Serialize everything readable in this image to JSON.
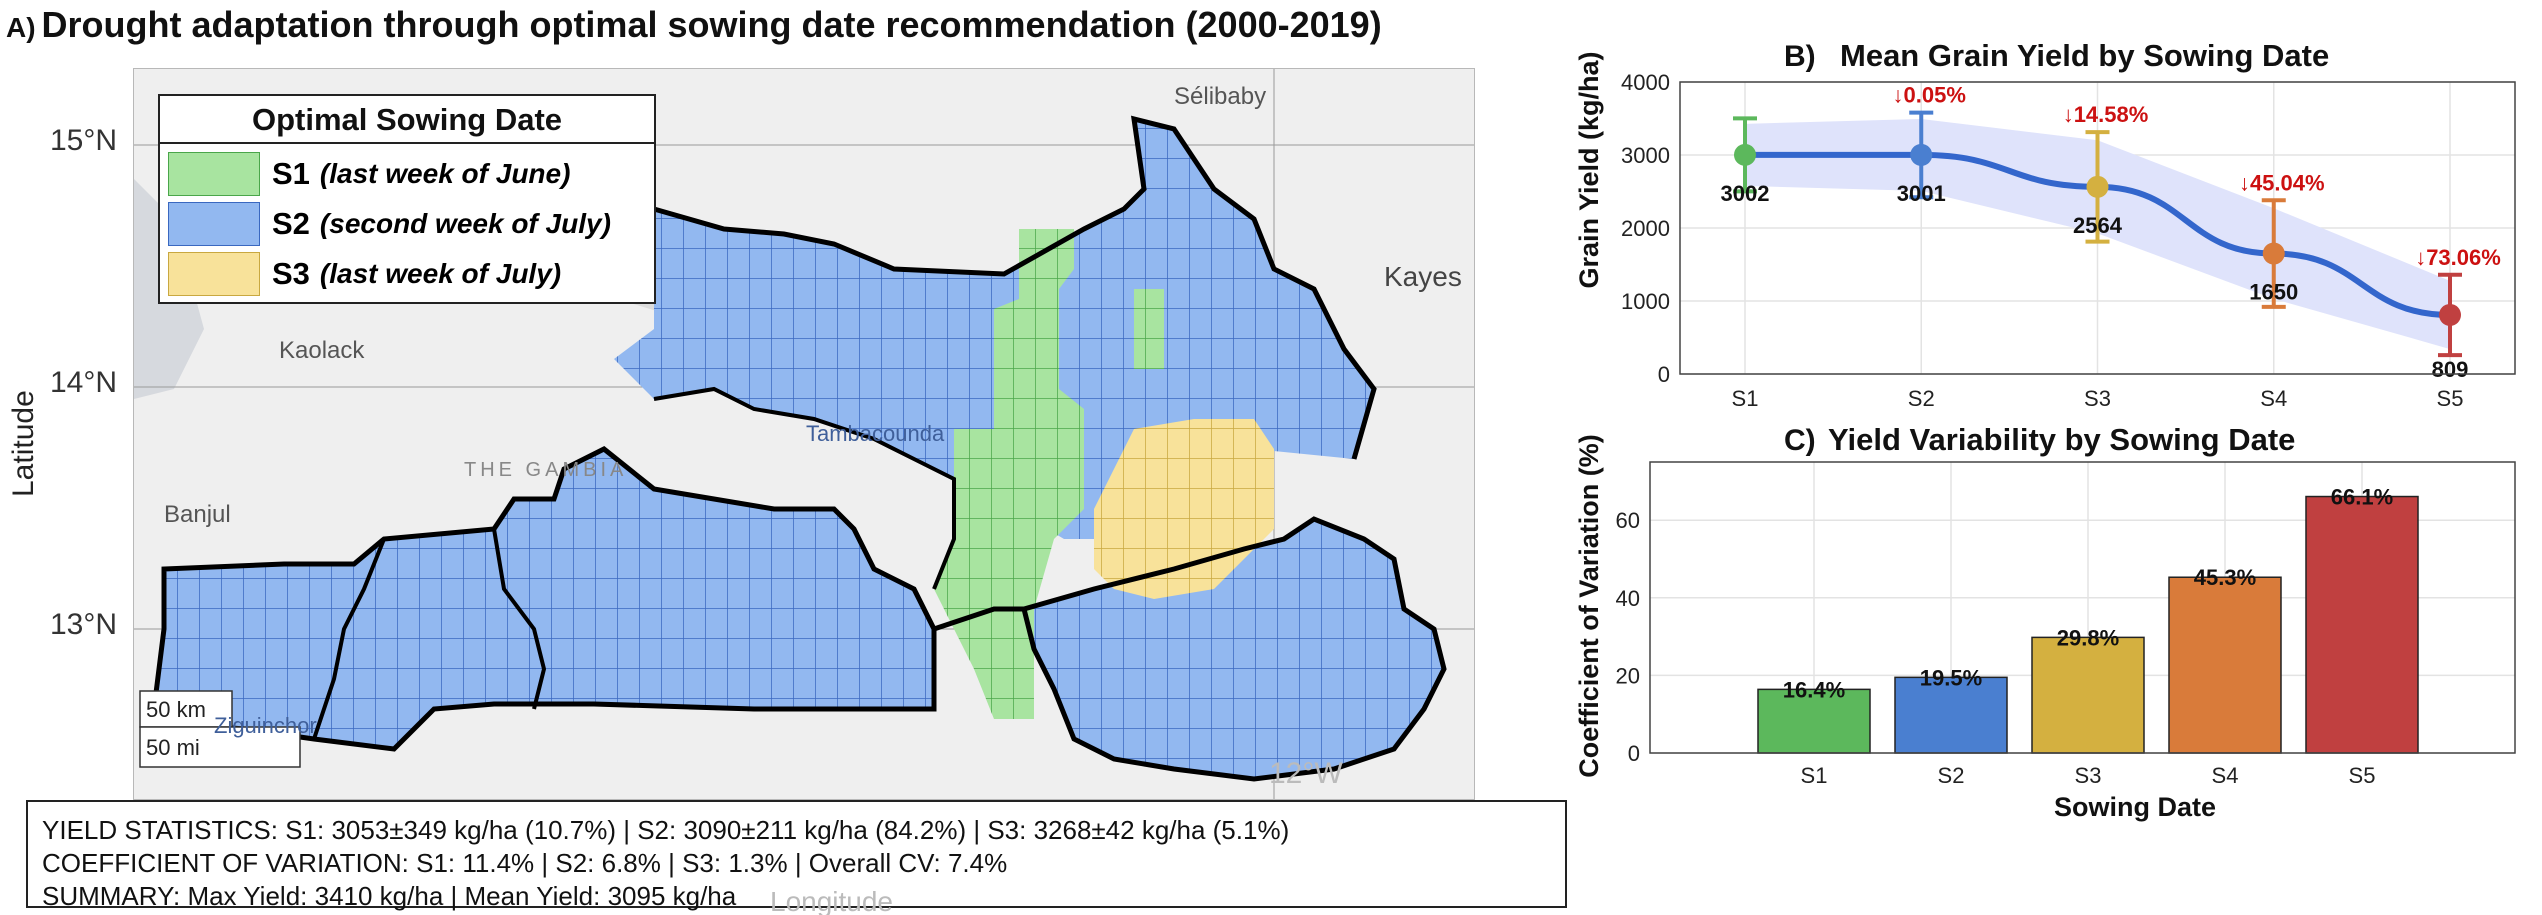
{
  "panel_a": {
    "label": "A)",
    "title": "Drought adaptation through optimal sowing date recommendation (2000-2019)",
    "ylabel": "Latitude",
    "xlabel_partial": "Longitude",
    "lat_ticks": [
      "15°N",
      "14°N",
      "13°N"
    ],
    "lon_ticks": [
      "12°W"
    ],
    "places": [
      "Sélibaby",
      "Kayes",
      "Kaolack",
      "Tambacounda",
      "Banjul",
      "THE GAMBIA",
      "Ziguinchor"
    ],
    "scale_km": "50 km",
    "scale_mi": "50 mi",
    "legend": {
      "title": "Optimal Sowing Date",
      "items": [
        {
          "code": "S1",
          "desc": "(last week of June)",
          "color": "#a8e4a0"
        },
        {
          "code": "S2",
          "desc": "(second week of July)",
          "color": "#92b8f0"
        },
        {
          "code": "S3",
          "desc": "(last week of July)",
          "color": "#f8e29a"
        }
      ]
    },
    "stats": {
      "line1": "YIELD STATISTICS: S1: 3053±349 kg/ha (10.7%) | S2: 3090±211 kg/ha (84.2%) | S3: 3268±42 kg/ha (5.1%)",
      "line2": "COEFFICIENT OF VARIATION: S1: 11.4% | S2: 6.8% | S3: 1.3% | Overall CV: 7.4%",
      "line3": "SUMMARY: Max Yield: 3410 kg/ha | Mean Yield: 3095 kg/ha"
    }
  },
  "chart_data": [
    {
      "type": "line",
      "panel_label": "B)",
      "title": "Mean Grain Yield by Sowing Date",
      "xlabel": "",
      "ylabel": "Grain Yield (kg/ha)",
      "categories": [
        "S1",
        "S2",
        "S3",
        "S4",
        "S5"
      ],
      "values": [
        3002,
        3001,
        2564,
        1650,
        809
      ],
      "errors": [
        500,
        580,
        750,
        730,
        550
      ],
      "value_labels": [
        "3002",
        "3001",
        "2564",
        "1650",
        "809"
      ],
      "reduction_labels": [
        "",
        "↓0.05%",
        "↓14.58%",
        "↓45.04%",
        "↓73.06%"
      ],
      "ylim": [
        0,
        4000
      ],
      "yticks": [
        0,
        1000,
        2000,
        3000,
        4000
      ],
      "point_colors": [
        "#5cb85c",
        "#4a7fd0",
        "#d4b040",
        "#d97b3a",
        "#c04040"
      ],
      "line_color": "#3366cc",
      "band_color": "#dfe3fb",
      "reduction_color": "#cc1111",
      "grid": true
    },
    {
      "type": "bar",
      "panel_label": "C)",
      "title": "Yield Variability by Sowing Date",
      "xlabel": "Sowing Date",
      "ylabel": "Coefficient of Variation (%)",
      "categories": [
        "S1",
        "S2",
        "S3",
        "S4",
        "S5"
      ],
      "values": [
        16.4,
        19.5,
        29.8,
        45.3,
        66.1
      ],
      "value_labels": [
        "16.4%",
        "19.5%",
        "29.8%",
        "45.3%",
        "66.1%"
      ],
      "ylim": [
        0,
        75
      ],
      "yticks": [
        0,
        20,
        40,
        60
      ],
      "colors": [
        "#5cb85c",
        "#4a7fd0",
        "#d4b040",
        "#d97b3a",
        "#c04040"
      ],
      "grid": true
    }
  ]
}
